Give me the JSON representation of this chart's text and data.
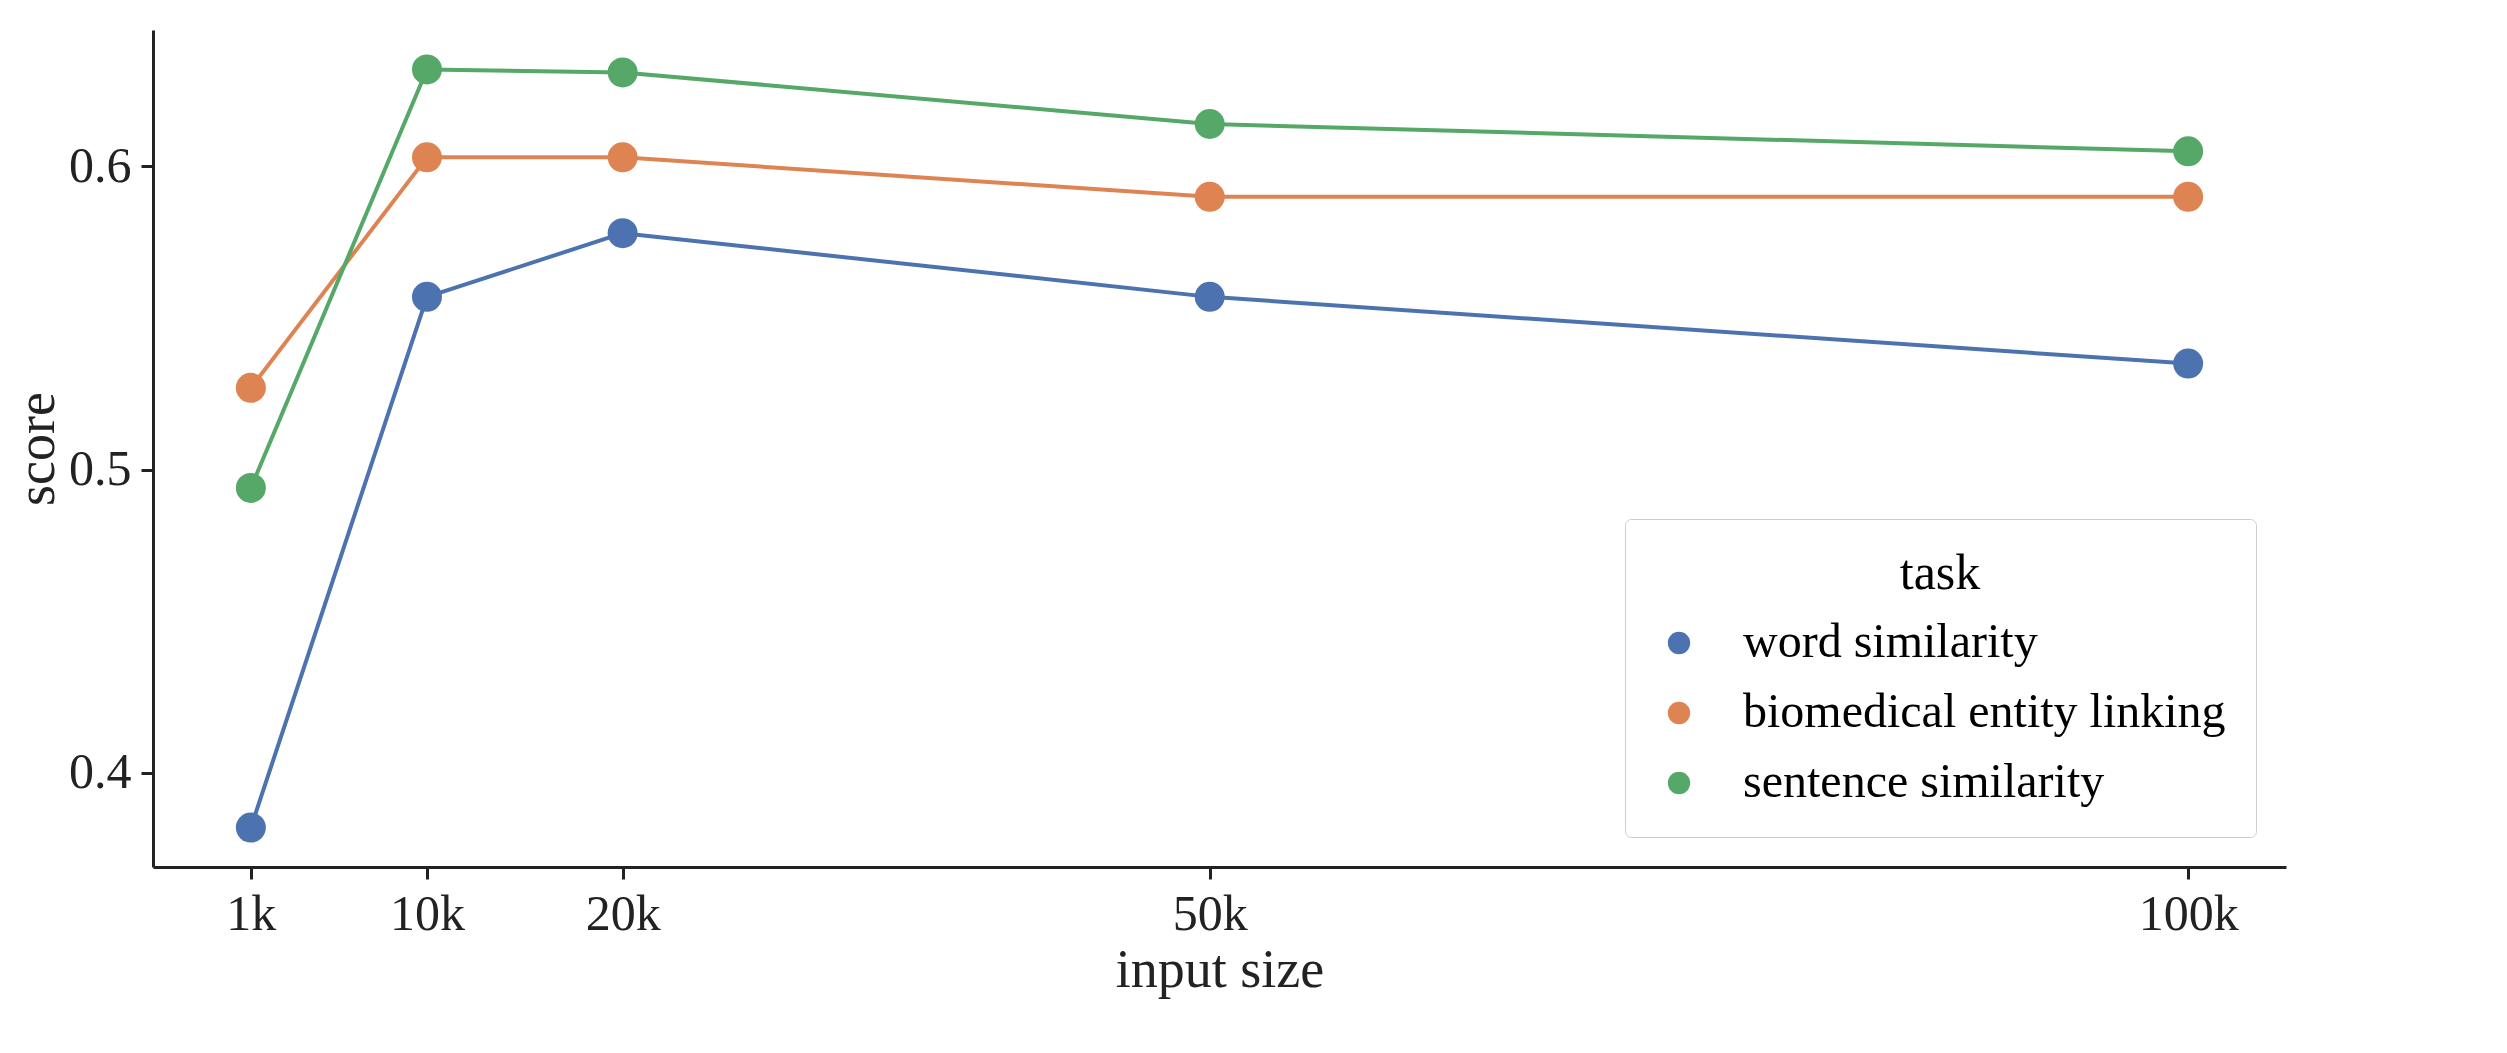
{
  "chart_data": {
    "type": "line",
    "xlabel": "input size",
    "ylabel": "score",
    "legend_title": "task",
    "x": [
      1,
      10,
      20,
      50,
      100
    ],
    "series": [
      {
        "name": "word similarity",
        "color": "#4c72b0",
        "values": [
          0.382,
          0.557,
          0.578,
          0.557,
          0.535
        ]
      },
      {
        "name": "biomedical entity linking",
        "color": "#dd8452",
        "values": [
          0.527,
          0.603,
          0.603,
          0.59,
          0.59
        ]
      },
      {
        "name": "sentence similarity",
        "color": "#55a868",
        "values": [
          0.494,
          0.632,
          0.631,
          0.614,
          0.605
        ]
      }
    ],
    "xlim": [
      -4,
      105
    ],
    "xticks": [
      {
        "value": 1,
        "label": "1k"
      },
      {
        "value": 10,
        "label": "10k"
      },
      {
        "value": 20,
        "label": "20k"
      },
      {
        "value": 50,
        "label": "50k"
      },
      {
        "value": 100,
        "label": "100k"
      }
    ],
    "ylim": [
      0.369,
      0.645
    ],
    "yticks": [
      0.4,
      0.5,
      0.6
    ],
    "grid": false,
    "legend": "bottom right",
    "marker": "circle",
    "line_style": "solid"
  }
}
